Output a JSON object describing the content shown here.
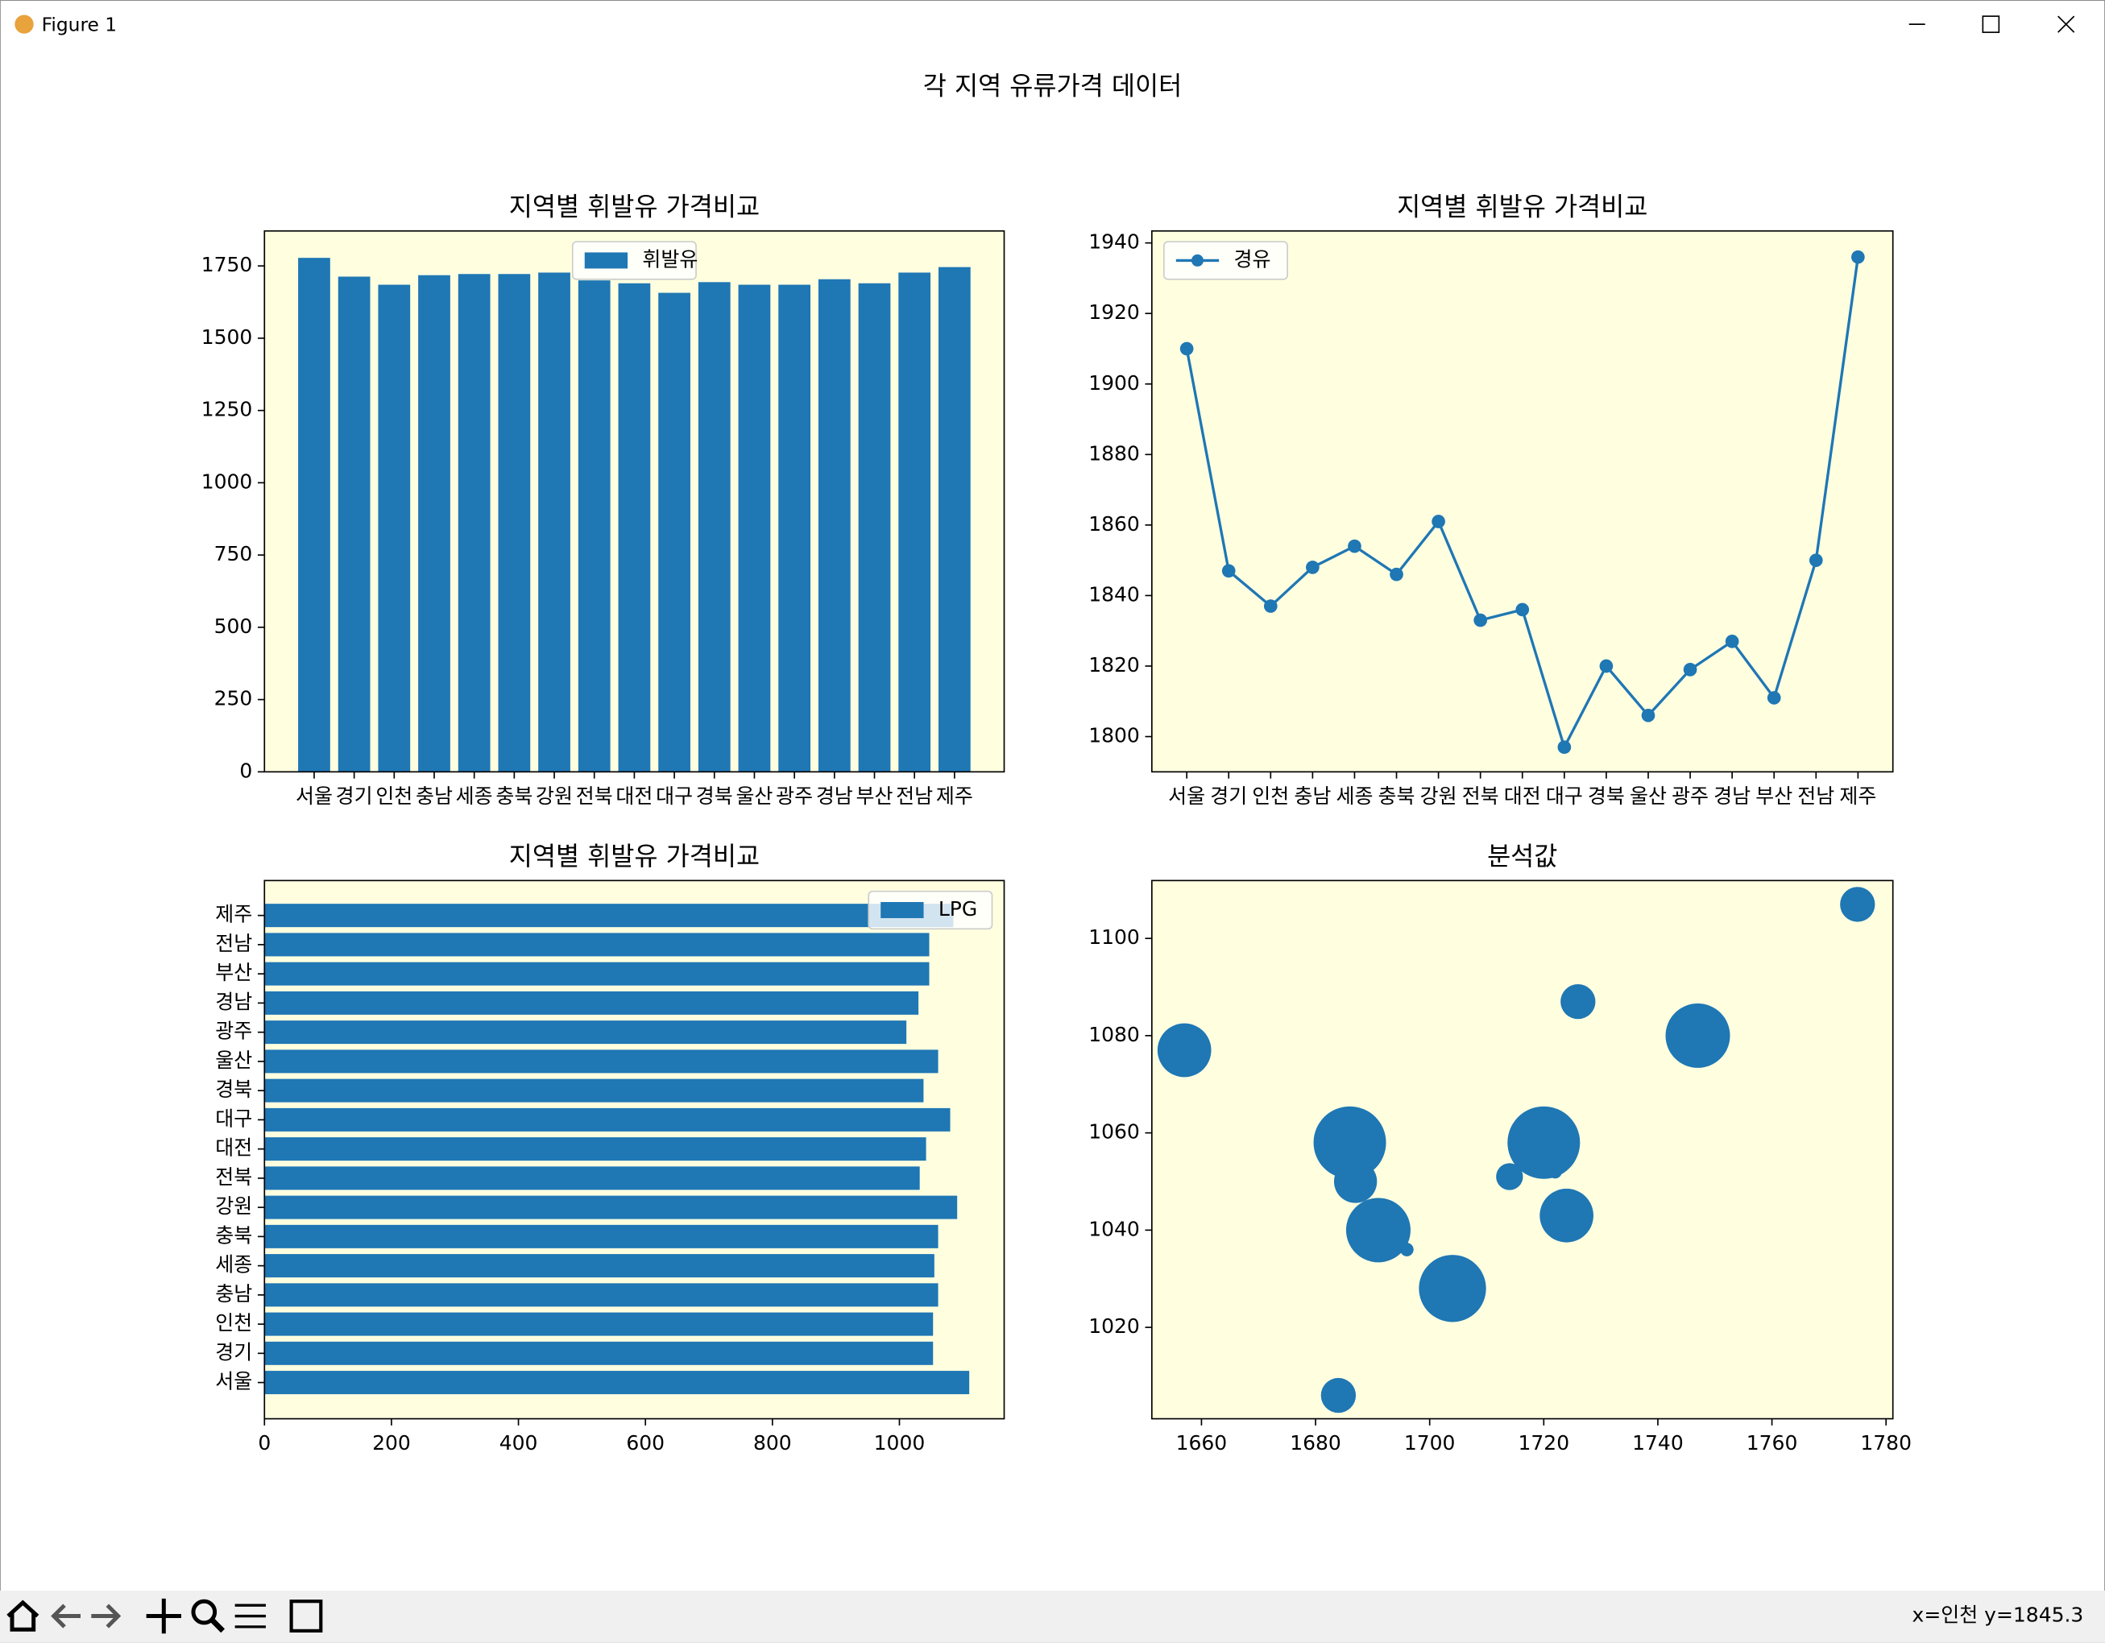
{
  "window": {
    "title": "Figure 1",
    "status": "x=인천 y=1845.3"
  },
  "suptitle": "각 지역 유류가격 데이터",
  "chart_data": [
    {
      "type": "bar",
      "title": "지역별 휘발유 가격비교",
      "categories": [
        "서울",
        "경기",
        "인천",
        "충남",
        "세종",
        "충북",
        "강원",
        "전북",
        "대전",
        "대구",
        "경북",
        "울산",
        "광주",
        "경남",
        "부산",
        "전남",
        "제주"
      ],
      "series": [
        {
          "name": "휘발유",
          "color": "#1f77b4",
          "values": [
            1778,
            1713,
            1685,
            1718,
            1722,
            1722,
            1727,
            1700,
            1690,
            1657,
            1694,
            1685,
            1685,
            1704,
            1690,
            1727,
            1746
          ]
        }
      ],
      "ylim": [
        0,
        1871
      ],
      "yticks": [
        0,
        250,
        500,
        750,
        1000,
        1250,
        1500,
        1750
      ],
      "legend": "upper center",
      "background": "#ffffe0"
    },
    {
      "type": "line",
      "title": "지역별 휘발유 가격비교",
      "categories": [
        "서울",
        "경기",
        "인천",
        "충남",
        "세종",
        "충북",
        "강원",
        "전북",
        "대전",
        "대구",
        "경북",
        "울산",
        "광주",
        "경남",
        "부산",
        "전남",
        "제주"
      ],
      "series": [
        {
          "name": "경유",
          "color": "#1f77b4",
          "values": [
            1910,
            1847,
            1837,
            1848,
            1854,
            1846,
            1861,
            1833,
            1836,
            1797,
            1820,
            1806,
            1819,
            1827,
            1811,
            1850,
            1936
          ]
        }
      ],
      "ylim": [
        1790,
        1943.4
      ],
      "yticks": [
        1800,
        1820,
        1840,
        1860,
        1880,
        1900,
        1920,
        1940
      ],
      "legend": "upper left",
      "background": "#ffffe0"
    },
    {
      "type": "barh",
      "title": "지역별 휘발유 가격비교",
      "categories": [
        "서울",
        "경기",
        "인천",
        "충남",
        "세종",
        "충북",
        "강원",
        "전북",
        "대전",
        "대구",
        "경북",
        "울산",
        "광주",
        "경남",
        "부산",
        "전남",
        "제주"
      ],
      "series": [
        {
          "name": "LPG",
          "color": "#1f77b4",
          "values": [
            1110,
            1053,
            1053,
            1061,
            1055,
            1061,
            1091,
            1032,
            1042,
            1080,
            1038,
            1061,
            1011,
            1030,
            1047,
            1047,
            1085
          ]
        }
      ],
      "xlim": [
        0,
        1165
      ],
      "xticks": [
        0,
        200,
        400,
        600,
        800,
        1000
      ],
      "legend": "upper right",
      "background": "#ffffe0"
    },
    {
      "type": "scatter",
      "title": "분석값",
      "color": "#1f77b4",
      "x": [
        1775,
        1657,
        1726,
        1747,
        1686,
        1720,
        1687,
        1714,
        1722,
        1724,
        1691,
        1696,
        1704,
        1684
      ],
      "y": [
        1107,
        1077,
        1087,
        1080,
        1058,
        1058,
        1050,
        1051,
        1052,
        1043,
        1040,
        1036,
        1028,
        1006
      ],
      "sizes": [
        169,
        400,
        169,
        576,
        729,
        729,
        256,
        100,
        25,
        400,
        576,
        25,
        625,
        169
      ],
      "xlim": [
        1651.3,
        1781.2
      ],
      "xticks": [
        1660,
        1680,
        1700,
        1720,
        1740,
        1760,
        1780
      ],
      "ylim": [
        1001.2,
        1111.9
      ],
      "yticks": [
        1020,
        1040,
        1060,
        1080,
        1100
      ],
      "background": "#ffffe0"
    }
  ]
}
